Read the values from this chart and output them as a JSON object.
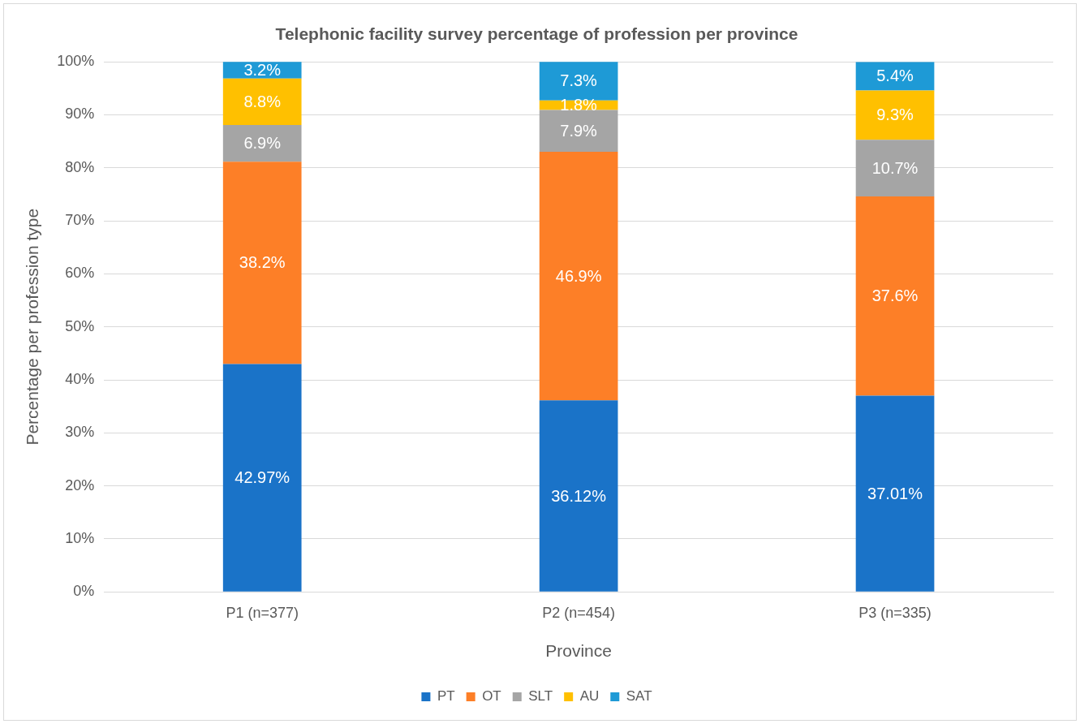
{
  "chart_data": {
    "type": "bar",
    "stacked": true,
    "title": "Telephonic facility survey percentage of profession per province",
    "xlabel": "Province",
    "ylabel": "Percentage per profession type",
    "categories": [
      "P1 (n=377)",
      "P2 (n=454)",
      "P3 (n=335)"
    ],
    "series": [
      {
        "name": "PT",
        "color": "#1a73c8",
        "values": [
          42.97,
          36.12,
          37.01
        ],
        "value_labels": [
          "42.97%",
          "36.12%",
          "37.01%"
        ]
      },
      {
        "name": "OT",
        "color": "#fd7f27",
        "values": [
          38.2,
          46.9,
          37.6
        ],
        "value_labels": [
          "38.2%",
          "46.9%",
          "37.6%"
        ]
      },
      {
        "name": "SLT",
        "color": "#a5a5a5",
        "values": [
          6.9,
          7.9,
          10.7
        ],
        "value_labels": [
          "6.9%",
          "7.9%",
          "10.7%"
        ]
      },
      {
        "name": "AU",
        "color": "#ffc000",
        "values": [
          8.8,
          1.8,
          9.3
        ],
        "value_labels": [
          "8.8%",
          "1.8%",
          "9.3%"
        ]
      },
      {
        "name": "SAT",
        "color": "#1e9ad6",
        "values": [
          3.2,
          7.3,
          5.4
        ],
        "value_labels": [
          "3.2%",
          "7.3%",
          "5.4%"
        ]
      }
    ],
    "ylim": [
      0,
      100
    ],
    "yticks": [
      {
        "value": 0,
        "label": "0%"
      },
      {
        "value": 10,
        "label": "10%"
      },
      {
        "value": 20,
        "label": "20%"
      },
      {
        "value": 30,
        "label": "30%"
      },
      {
        "value": 40,
        "label": "40%"
      },
      {
        "value": 50,
        "label": "50%"
      },
      {
        "value": 60,
        "label": "60%"
      },
      {
        "value": 70,
        "label": "70%"
      },
      {
        "value": 80,
        "label": "80%"
      },
      {
        "value": 90,
        "label": "90%"
      },
      {
        "value": 100,
        "label": "100%"
      }
    ],
    "grid": "y",
    "legend": "bottom"
  }
}
